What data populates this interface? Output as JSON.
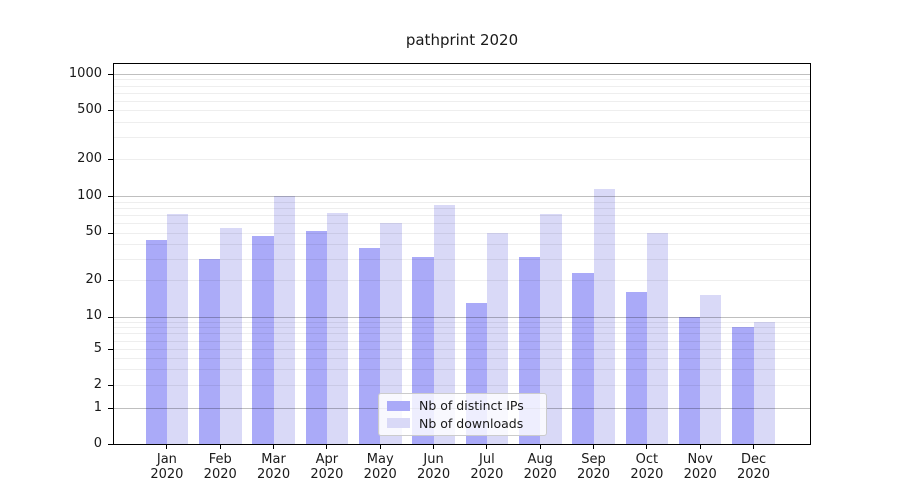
{
  "title": "pathprint 2020",
  "legend": {
    "items": [
      {
        "label": "Nb of distinct IPs",
        "color": "#aaaaf8"
      },
      {
        "label": "Nb of downloads",
        "color": "#d9d9f7"
      }
    ]
  },
  "colors": {
    "distinct_ips_bar": "#aaaaf8",
    "downloads_bar": "#d9d9f7",
    "major_grid": "rgba(0,0,0,0.25)",
    "minor_grid": "rgba(0,0,0,0.065)",
    "spine": "#000000"
  },
  "chart_data": {
    "type": "bar",
    "title": "pathprint 2020",
    "categories": [
      "Jan 2020",
      "Feb 2020",
      "Mar 2020",
      "Apr 2020",
      "May 2020",
      "Jun 2020",
      "Jul 2020",
      "Aug 2020",
      "Sep 2020",
      "Oct 2020",
      "Nov 2020",
      "Dec 2020"
    ],
    "series": [
      {
        "name": "Nb of distinct IPs",
        "color": "#aaaaf8",
        "values": [
          43,
          30,
          47,
          52,
          37,
          31,
          13,
          31,
          23,
          16,
          10,
          8
        ]
      },
      {
        "name": "Nb of downloads",
        "color": "#d9d9f7",
        "values": [
          71,
          55,
          100,
          72,
          60,
          84,
          50,
          71,
          115,
          50,
          15,
          9
        ]
      }
    ],
    "xlabel": "",
    "ylabel": "",
    "yscale": "symlog",
    "ytick_labels": [
      0,
      1,
      2,
      5,
      10,
      20,
      50,
      100,
      200,
      500,
      1000
    ],
    "ylim": [
      0,
      1100
    ],
    "grid": "both, drawn over bars",
    "legend_position": "lower center"
  }
}
